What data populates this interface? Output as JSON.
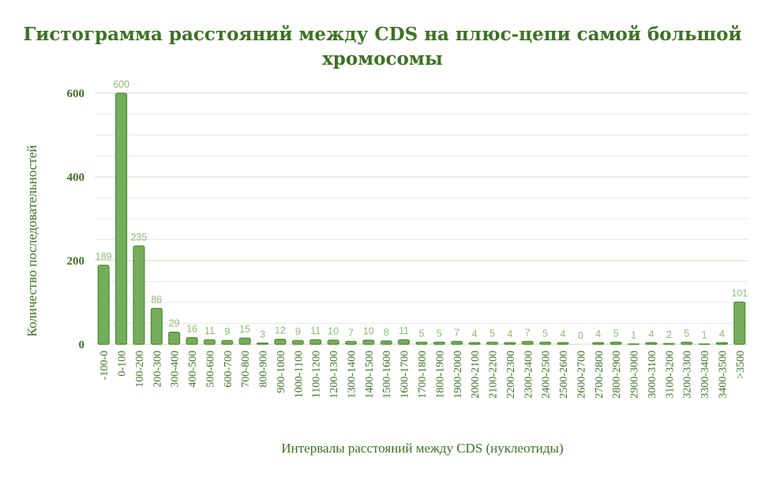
{
  "chart_data": {
    "type": "bar",
    "title": "Гистограмма расстояний между CDS на плюс-цепи самой большой хромосомы",
    "title_lines": [
      "Гистограмма расстояний между CDS на плюс-цепи самой большой",
      "хромосомы"
    ],
    "xlabel": "Интервалы расстояний между CDS (нуклеотиды)",
    "ylabel": "Количество последовательностей",
    "ylim": [
      0,
      600
    ],
    "yticks": [
      0,
      200,
      400,
      600
    ],
    "grid": true,
    "legend": "none",
    "bar_color": "#74ad5b",
    "bar_edge_color": "#4f8a36",
    "text_color": "#3e7226",
    "label_color": "#8cbb76",
    "categories": [
      "-100-0",
      "0-100",
      "100-200",
      "200-300",
      "300-400",
      "400-500",
      "500-600",
      "600-700",
      "700-800",
      "800-900",
      "900-1000",
      "1000-1100",
      "1100-1200",
      "1200-1300",
      "1300-1400",
      "1400-1500",
      "1500-1600",
      "1600-1700",
      "1700-1800",
      "1800-1900",
      "1900-2000",
      "2000-2100",
      "2100-2200",
      "2200-2300",
      "2300-2400",
      "2400-2500",
      "2500-2600",
      "2600-2700",
      "2700-2800",
      "2800-2900",
      "2900-3000",
      "3000-3100",
      "3100-3200",
      "3200-3300",
      "3300-3400",
      "3400-3500",
      ">3500"
    ],
    "values": [
      189,
      600,
      235,
      86,
      29,
      16,
      11,
      9,
      15,
      3,
      12,
      9,
      11,
      10,
      7,
      10,
      8,
      11,
      5,
      5,
      7,
      4,
      5,
      4,
      7,
      5,
      4,
      0,
      4,
      5,
      1,
      4,
      2,
      5,
      1,
      4,
      101
    ]
  }
}
